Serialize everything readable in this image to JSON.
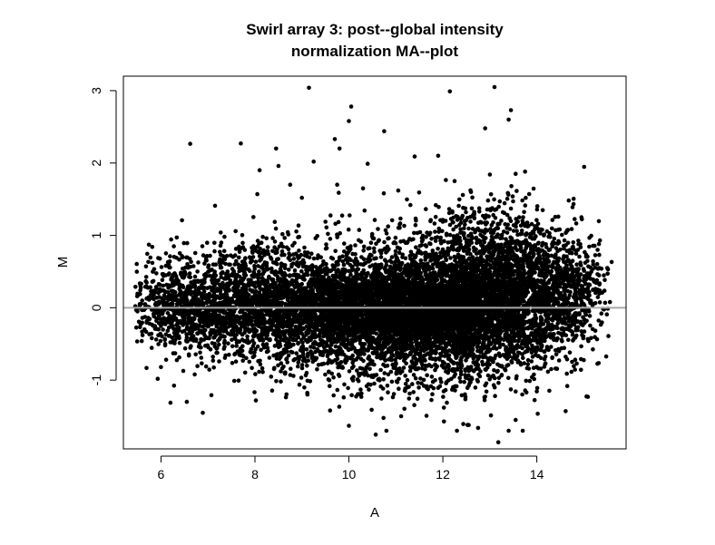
{
  "chart_data": {
    "type": "scatter",
    "title_lines": [
      "Swirl array 3: post--global intensity",
      "normalization MA--plot"
    ],
    "xlabel": "A",
    "ylabel": "M",
    "xlim": [
      5.2,
      15.9
    ],
    "ylim": [
      -1.95,
      3.2
    ],
    "x_ticks": [
      6,
      8,
      10,
      12,
      14
    ],
    "y_ticks": [
      -1,
      0,
      1,
      2,
      3
    ],
    "reference_line": {
      "y": 0,
      "color": "#aaaaaa"
    },
    "point_color": "#000000",
    "line_color": "#000000",
    "grid": false,
    "legend": "none",
    "notable_points": [
      [
        9.15,
        3.04
      ],
      [
        12.15,
        2.99
      ],
      [
        13.1,
        3.05
      ],
      [
        13.45,
        2.73
      ],
      [
        13.4,
        2.6
      ],
      [
        10.05,
        2.78
      ],
      [
        10.0,
        2.58
      ],
      [
        12.9,
        2.48
      ],
      [
        10.75,
        2.44
      ],
      [
        7.7,
        2.27
      ],
      [
        9.7,
        2.33
      ],
      [
        8.45,
        2.2
      ],
      [
        9.8,
        2.2
      ],
      [
        11.4,
        2.09
      ],
      [
        11.9,
        2.1
      ],
      [
        9.25,
        2.02
      ],
      [
        10.4,
        1.99
      ],
      [
        8.1,
        1.9
      ],
      [
        8.5,
        1.96
      ],
      [
        13.55,
        1.85
      ],
      [
        13.75,
        1.88
      ],
      [
        13.0,
        1.84
      ],
      [
        12.25,
        1.75
      ],
      [
        12.6,
        1.6
      ],
      [
        8.75,
        1.7
      ],
      [
        9.75,
        1.7
      ],
      [
        8.05,
        1.57
      ],
      [
        9.0,
        1.52
      ],
      [
        10.3,
        1.65
      ],
      [
        11.05,
        1.62
      ],
      [
        7.15,
        1.41
      ],
      [
        6.55,
        -1.3
      ],
      [
        6.0,
        -0.82
      ],
      [
        9.6,
        -1.42
      ],
      [
        10.0,
        -1.63
      ],
      [
        10.8,
        -1.7
      ],
      [
        12.3,
        -1.7
      ],
      [
        12.75,
        -1.66
      ],
      [
        13.4,
        -1.7
      ],
      [
        13.7,
        -1.7
      ],
      [
        12.55,
        -1.62
      ],
      [
        13.55,
        -1.55
      ],
      [
        15.5,
        0.55
      ],
      [
        15.2,
        0.6
      ],
      [
        14.95,
        1.25
      ],
      [
        14.85,
        0.45
      ],
      [
        5.5,
        -0.05
      ],
      [
        5.6,
        0.1
      ],
      [
        5.65,
        -0.3
      ],
      [
        15.3,
        0.25
      ]
    ],
    "clusters": [
      {
        "cx": 6.3,
        "cy": 0.02,
        "sx": 0.55,
        "sy": 0.3,
        "n": 550
      },
      {
        "cx": 7.4,
        "cy": 0.02,
        "sx": 0.65,
        "sy": 0.33,
        "n": 850
      },
      {
        "cx": 8.6,
        "cy": 0.0,
        "sx": 0.6,
        "sy": 0.36,
        "n": 900
      },
      {
        "cx": 9.8,
        "cy": 0.0,
        "sx": 0.55,
        "sy": 0.36,
        "n": 1300
      },
      {
        "cx": 11.0,
        "cy": -0.03,
        "sx": 0.6,
        "sy": 0.33,
        "n": 2100
      },
      {
        "cx": 12.2,
        "cy": 0.0,
        "sx": 0.6,
        "sy": 0.37,
        "n": 2000
      },
      {
        "cx": 13.2,
        "cy": 0.12,
        "sx": 0.55,
        "sy": 0.43,
        "n": 1500
      },
      {
        "cx": 14.2,
        "cy": 0.18,
        "sx": 0.5,
        "sy": 0.45,
        "n": 900
      },
      {
        "cx": 14.9,
        "cy": 0.25,
        "sx": 0.35,
        "sy": 0.32,
        "n": 200
      },
      {
        "cx": 12.7,
        "cy": 0.95,
        "sx": 0.9,
        "sy": 0.28,
        "n": 350
      },
      {
        "cx": 11.2,
        "cy": -0.85,
        "sx": 1.5,
        "sy": 0.25,
        "n": 300
      },
      {
        "cx": 7.8,
        "cy": 0.75,
        "sx": 1.1,
        "sy": 0.2,
        "n": 120
      }
    ],
    "x_range_clip": [
      5.45,
      15.6
    ],
    "random_seed": 20240317
  }
}
